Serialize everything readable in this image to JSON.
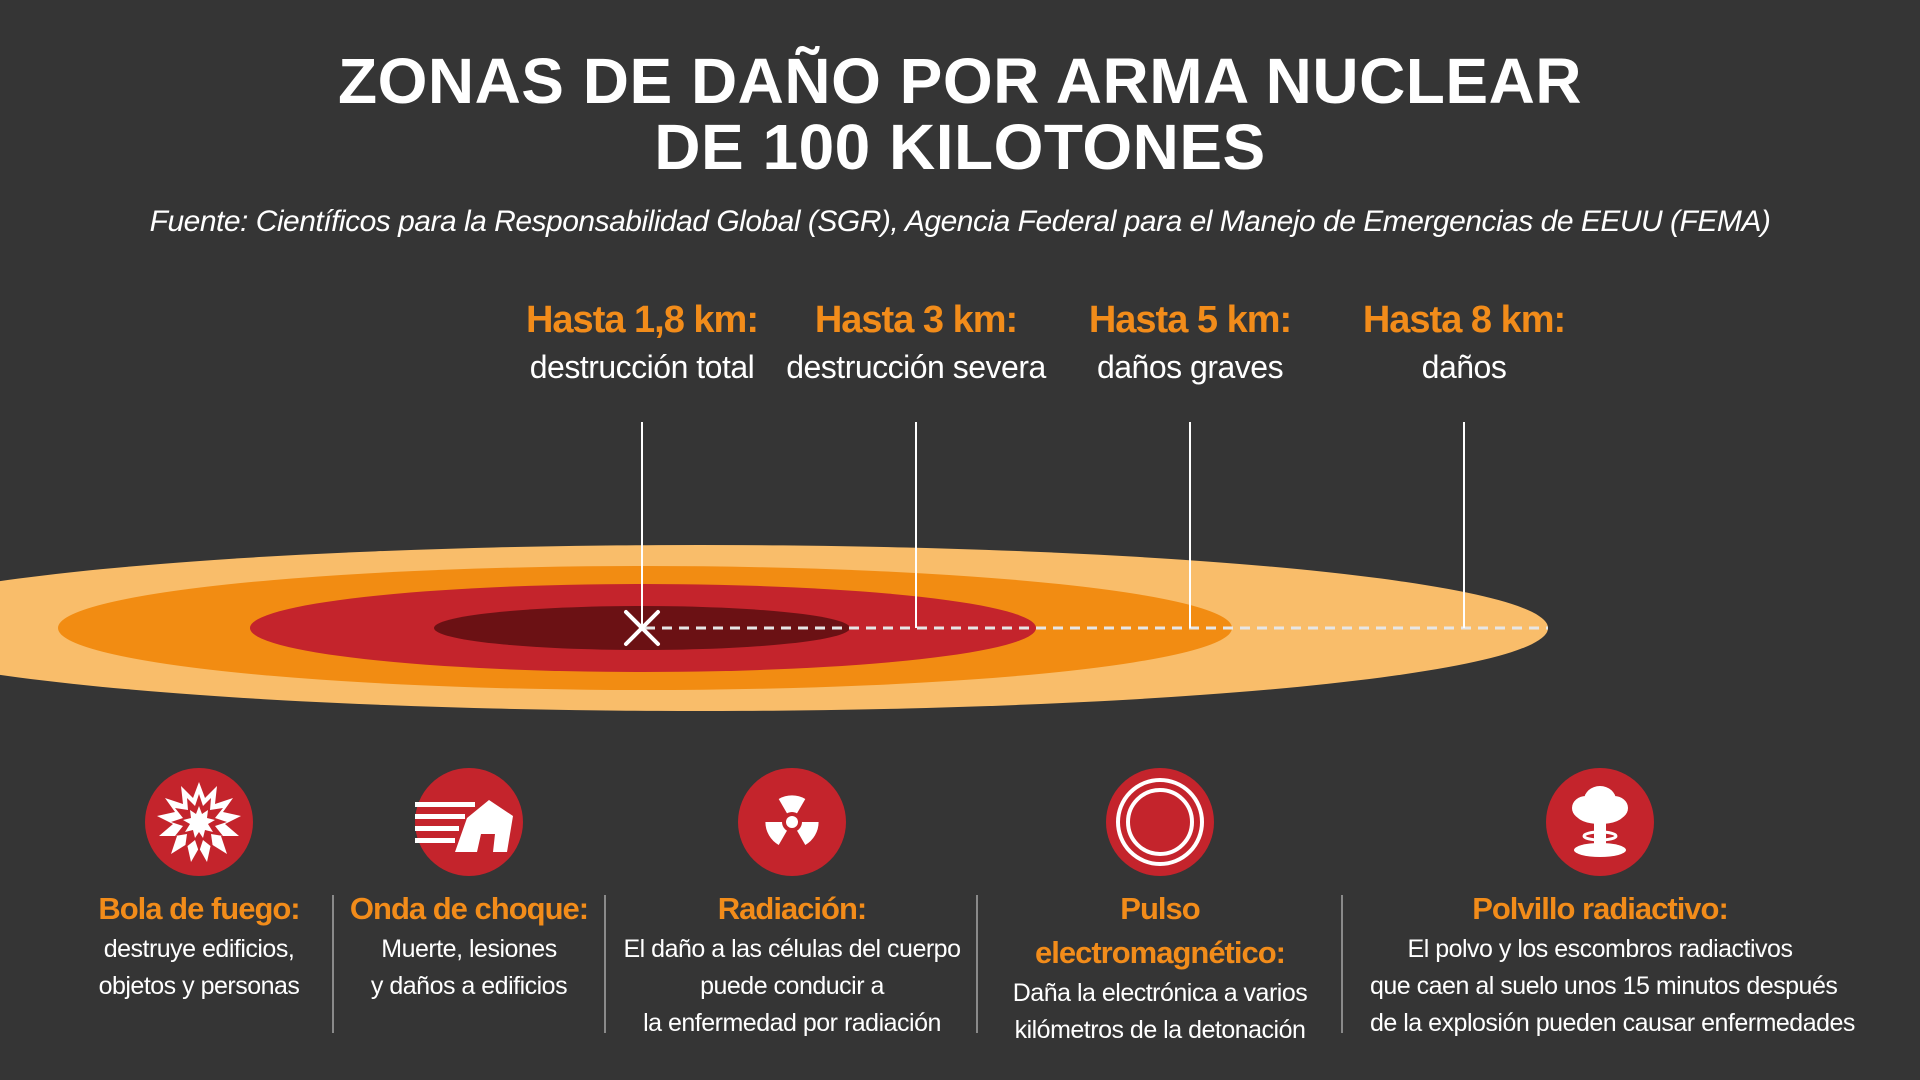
{
  "title": {
    "line1": "ZONAS DE DAÑO POR ARMA NUCLEAR",
    "line2": "DE 100 KILOTONES"
  },
  "source": "Fuente: Científicos para la Responsabilidad Global (SGR), Agencia Federal para el Manejo de Emergencias de EEUU (FEMA)",
  "zones": [
    {
      "distance": "Hasta 1,8 km:",
      "description": "destrucción total",
      "color": "#6b1114"
    },
    {
      "distance": "Hasta 3 km:",
      "description": "destrucción severa",
      "color": "#c4242c"
    },
    {
      "distance": "Hasta 5 km:",
      "description": "daños graves",
      "color": "#f28c12"
    },
    {
      "distance": "Hasta 8 km:",
      "description": "daños",
      "color": "#f9bd6a"
    }
  ],
  "effects": [
    {
      "icon": "fireball-icon",
      "title": "Bola de fuego:",
      "lines": [
        "destruye edificios,",
        "objetos y personas"
      ]
    },
    {
      "icon": "shockwave-house-icon",
      "title": "Onda de choque:",
      "lines": [
        "Muerte, lesiones",
        "y daños a edificios"
      ]
    },
    {
      "icon": "radiation-icon",
      "title": "Radiación:",
      "lines": [
        "El daño a las células del cuerpo",
        "puede conducir a",
        "la enfermedad por radiación"
      ]
    },
    {
      "icon": "emp-pulse-icon",
      "title": "Pulso electromagnético:",
      "lines": [
        "Daña la electrónica a varios",
        "kilómetros de la detonación"
      ]
    },
    {
      "icon": "mushroom-cloud-icon",
      "title": "Polvillo radiactivo:",
      "lines": [
        "El polvo y los escombros radiactivos",
        "que caen al suelo unos 15 minutos después",
        "de la explosión pueden causar enfermedades"
      ]
    }
  ],
  "colors": {
    "background": "#353535",
    "accent": "#f28c1a",
    "icon_red": "#c4242c"
  }
}
